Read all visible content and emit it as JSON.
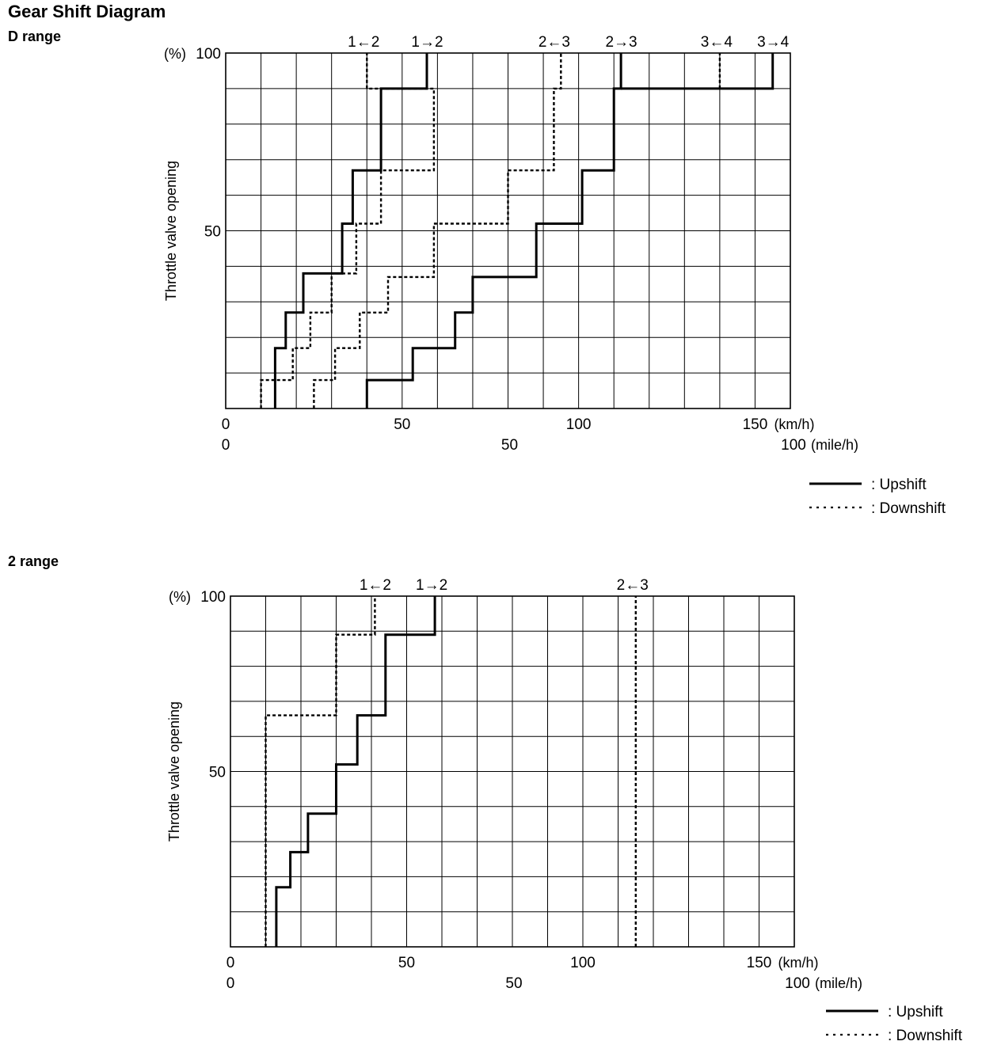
{
  "page": {
    "title": "Gear Shift Diagram"
  },
  "legend": {
    "upshift": ": Upshift",
    "downshift": ": Downshift"
  },
  "chart_data": [
    {
      "type": "line",
      "title": "D range",
      "ylabel": "Throttle valve opening",
      "yunit": "(%)",
      "xunit": "(km/h)",
      "x2unit": "(mile/h)",
      "xlim": [
        0,
        160
      ],
      "ylim": [
        0,
        100
      ],
      "xticks": [
        "0",
        "50",
        "100",
        "150"
      ],
      "x2ticks": [
        "0",
        "50",
        "100"
      ],
      "yticks": [
        "50",
        "100"
      ],
      "grid": true,
      "legend": "bottom-right",
      "shift_labels": [
        {
          "text": "1←2",
          "x": 40
        },
        {
          "text": "1→2",
          "x": 58
        },
        {
          "text": "2←3",
          "x": 94
        },
        {
          "text": "2→3",
          "x": 113
        },
        {
          "text": "3←4",
          "x": 140
        },
        {
          "text": "3→4",
          "x": 156
        }
      ],
      "series": [
        {
          "name": "1→2",
          "style": "upshift",
          "points": [
            [
              14,
              0
            ],
            [
              14,
              17
            ],
            [
              17,
              17
            ],
            [
              17,
              27
            ],
            [
              22,
              27
            ],
            [
              22,
              38
            ],
            [
              33,
              38
            ],
            [
              33,
              52
            ],
            [
              36,
              52
            ],
            [
              36,
              67
            ],
            [
              44,
              67
            ],
            [
              44,
              90
            ],
            [
              57,
              90
            ],
            [
              57,
              100
            ]
          ]
        },
        {
          "name": "1←2",
          "style": "downshift",
          "points": [
            [
              10,
              0
            ],
            [
              10,
              8
            ],
            [
              19,
              8
            ],
            [
              19,
              17
            ],
            [
              24,
              17
            ],
            [
              24,
              27
            ],
            [
              30,
              27
            ],
            [
              30,
              38
            ],
            [
              37,
              38
            ],
            [
              37,
              52
            ],
            [
              44,
              52
            ],
            [
              44,
              67
            ],
            [
              59,
              67
            ],
            [
              59,
              90
            ],
            [
              40,
              90
            ],
            [
              40,
              100
            ]
          ]
        },
        {
          "name": "2→3",
          "style": "upshift",
          "points": [
            [
              40,
              0
            ],
            [
              40,
              8
            ],
            [
              53,
              8
            ],
            [
              53,
              17
            ],
            [
              65,
              17
            ],
            [
              65,
              27
            ],
            [
              70,
              27
            ],
            [
              70,
              37
            ],
            [
              88,
              37
            ],
            [
              88,
              52
            ],
            [
              101,
              52
            ],
            [
              101,
              67
            ],
            [
              110,
              67
            ],
            [
              110,
              90
            ],
            [
              112,
              90
            ],
            [
              112,
              100
            ]
          ]
        },
        {
          "name": "2←3",
          "style": "downshift",
          "points": [
            [
              25,
              0
            ],
            [
              25,
              8
            ],
            [
              31,
              8
            ],
            [
              31,
              17
            ],
            [
              38,
              17
            ],
            [
              38,
              27
            ],
            [
              46,
              27
            ],
            [
              46,
              37
            ],
            [
              59,
              37
            ],
            [
              59,
              52
            ],
            [
              80,
              52
            ],
            [
              80,
              67
            ],
            [
              93,
              67
            ],
            [
              93,
              90
            ],
            [
              95,
              90
            ],
            [
              95,
              100
            ]
          ]
        },
        {
          "name": "3→4",
          "style": "upshift",
          "points": [
            [
              112,
              90
            ],
            [
              155,
              90
            ],
            [
              155,
              100
            ]
          ]
        },
        {
          "name": "3←4",
          "style": "downshift",
          "points": [
            [
              140,
              90
            ],
            [
              140,
              100
            ]
          ]
        }
      ]
    },
    {
      "type": "line",
      "title": "2 range",
      "ylabel": "Throttle valve opening",
      "yunit": "(%)",
      "xunit": "(km/h)",
      "x2unit": "(mile/h)",
      "xlim": [
        0,
        160
      ],
      "ylim": [
        0,
        100
      ],
      "xticks": [
        "0",
        "50",
        "100",
        "150"
      ],
      "x2ticks": [
        "0",
        "50",
        "100"
      ],
      "yticks": [
        "50",
        "100"
      ],
      "grid": true,
      "legend": "bottom-right",
      "shift_labels": [
        {
          "text": "1←2",
          "x": 42
        },
        {
          "text": "1→2",
          "x": 58
        },
        {
          "text": "2←3",
          "x": 115
        }
      ],
      "series": [
        {
          "name": "1→2",
          "style": "upshift",
          "points": [
            [
              13,
              0
            ],
            [
              13,
              17
            ],
            [
              17,
              17
            ],
            [
              17,
              27
            ],
            [
              22,
              27
            ],
            [
              22,
              38
            ],
            [
              30,
              38
            ],
            [
              30,
              52
            ],
            [
              36,
              52
            ],
            [
              36,
              66
            ],
            [
              44,
              66
            ],
            [
              44,
              89
            ],
            [
              58,
              89
            ],
            [
              58,
              100
            ]
          ]
        },
        {
          "name": "1←2",
          "style": "downshift",
          "points": [
            [
              10,
              0
            ],
            [
              10,
              66
            ],
            [
              30,
              66
            ],
            [
              30,
              89
            ],
            [
              41,
              89
            ],
            [
              41,
              100
            ]
          ]
        },
        {
          "name": "2←3",
          "style": "downshift",
          "points": [
            [
              115,
              0
            ],
            [
              115,
              100
            ]
          ]
        }
      ]
    }
  ]
}
